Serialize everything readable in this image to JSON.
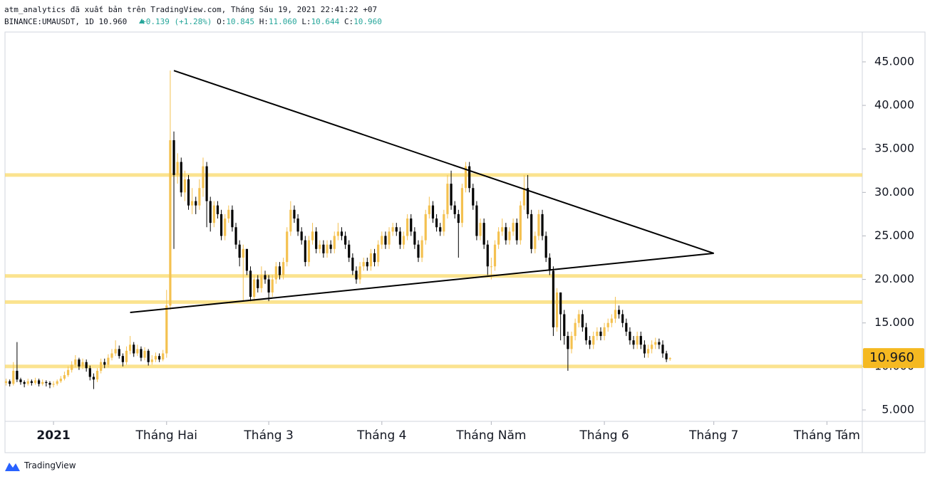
{
  "header": {
    "publisher": "atm_analytics đã xuất bản trên TradingView.com, Tháng Sáu 19, 2021 22:41:22 +07",
    "symbol": "BINANCE:UMAUSDT, 1D",
    "last": "10.960",
    "change": "+0.139 (+1.28%)",
    "ohlc": [
      {
        "key": "O:",
        "value": "10.845"
      },
      {
        "key": "H:",
        "value": "11.060"
      },
      {
        "key": "L:",
        "value": "10.644"
      },
      {
        "key": "C:",
        "value": "10.960"
      }
    ]
  },
  "footer": {
    "brand": "TradingView"
  },
  "chart_data": {
    "type": "candlestick",
    "up_color": "#f4c150",
    "down_color": "#000000",
    "band_color": "#f9d969",
    "line_color": "#000000",
    "price_box_color": "#f5b921",
    "x": [
      -13,
      -12,
      -11,
      -10,
      -9,
      -8,
      -7,
      -6,
      -5,
      -4,
      -3,
      -2,
      -1,
      0,
      1,
      2,
      3,
      4,
      5,
      6,
      7,
      8,
      9,
      10,
      11,
      12,
      13,
      14,
      15,
      16,
      17,
      18,
      19,
      20,
      21,
      22,
      23,
      24,
      25,
      26,
      27,
      28,
      29,
      30,
      31,
      32,
      33,
      34,
      35,
      36,
      37,
      38,
      39,
      40,
      41,
      42,
      43,
      44,
      45,
      46,
      47,
      48,
      49,
      50,
      51,
      52,
      53,
      54,
      55,
      56,
      57,
      58,
      59,
      60,
      61,
      62,
      63,
      64,
      65,
      66,
      67,
      68,
      69,
      70,
      71,
      72,
      73,
      74,
      75,
      76,
      77,
      78,
      79,
      80,
      81,
      82,
      83,
      84,
      85,
      86,
      87,
      88,
      89,
      90,
      91,
      92,
      93,
      94,
      95,
      96,
      97,
      98,
      99,
      100,
      101,
      102,
      103,
      104,
      105,
      106,
      107,
      108,
      109,
      110,
      111,
      112,
      113,
      114,
      115,
      116,
      117,
      118,
      119,
      120,
      121,
      122,
      123,
      124,
      125,
      126,
      127,
      128,
      129,
      130,
      131,
      132,
      133,
      134,
      135,
      136,
      137,
      138,
      139,
      140,
      141,
      142,
      143,
      144,
      145,
      146,
      147,
      148,
      149,
      150,
      151,
      152,
      153,
      154,
      155,
      156,
      157,
      158,
      159,
      160,
      161,
      162,
      163,
      164,
      165,
      166,
      167,
      168,
      169
    ],
    "open": [
      8.1,
      8.3,
      8.0,
      9.5,
      8.5,
      8.2,
      8.0,
      8.3,
      8.1,
      8.4,
      8.0,
      8.2,
      8.1,
      7.9,
      8.0,
      8.3,
      8.6,
      9.0,
      9.6,
      10.2,
      10.8,
      10.0,
      10.5,
      9.8,
      8.8,
      8.5,
      9.5,
      10.5,
      10.2,
      11.0,
      11.5,
      12.0,
      11.2,
      10.5,
      11.8,
      12.5,
      11.5,
      12.0,
      11.0,
      11.8,
      10.5,
      10.8,
      11.2,
      10.8,
      11.5,
      17.0,
      36.0,
      32.0,
      33.5,
      30.0,
      31.5,
      28.5,
      29.0,
      28.5,
      30.5,
      33.0,
      29.0,
      26.5,
      28.5,
      27.5,
      25.0,
      27.0,
      28.0,
      26.0,
      24.0,
      22.5,
      23.5,
      21.0,
      18.0,
      20.0,
      19.0,
      20.5,
      20.0,
      18.5,
      20.0,
      21.5,
      20.5,
      22.0,
      25.5,
      28.0,
      27.0,
      25.5,
      24.5,
      22.0,
      24.5,
      25.5,
      23.5,
      24.0,
      23.0,
      24.0,
      23.5,
      25.0,
      25.5,
      25.0,
      24.0,
      22.5,
      21.0,
      20.0,
      21.5,
      22.0,
      21.5,
      23.0,
      22.0,
      24.0,
      25.0,
      24.0,
      25.5,
      26.0,
      25.5,
      24.0,
      25.0,
      27.0,
      25.5,
      24.0,
      22.5,
      24.5,
      27.5,
      28.5,
      27.0,
      26.0,
      25.5,
      27.5,
      31.0,
      28.5,
      27.5,
      26.5,
      30.5,
      33.0,
      30.5,
      28.5,
      25.0,
      26.5,
      24.0,
      21.5,
      21.5,
      24.0,
      25.5,
      26.0,
      24.5,
      25.5,
      26.5,
      24.5,
      28.5,
      30.5,
      27.5,
      23.5,
      25.0,
      27.5,
      25.0,
      22.5,
      21.0,
      14.5,
      18.5,
      16.0,
      13.5,
      12.0,
      13.5,
      15.0,
      16.0,
      14.5,
      13.0,
      12.5,
      13.5,
      14.0,
      13.5,
      14.5,
      15.0,
      15.5,
      16.5,
      16.0,
      15.0,
      14.0,
      13.0,
      12.5,
      13.5,
      12.5,
      11.5,
      12.0,
      12.5,
      12.8,
      12.5,
      11.5,
      10.845
    ],
    "high": [
      8.6,
      8.5,
      10.5,
      12.8,
      8.7,
      8.4,
      8.6,
      8.5,
      8.7,
      8.6,
      8.5,
      8.4,
      8.3,
      8.3,
      8.5,
      8.9,
      9.4,
      10.0,
      10.6,
      11.3,
      11.0,
      10.9,
      10.8,
      10.1,
      9.2,
      9.8,
      10.9,
      10.9,
      11.4,
      12.0,
      13.0,
      12.4,
      11.5,
      12.3,
      13.5,
      12.8,
      12.5,
      12.3,
      12.2,
      12.0,
      11.3,
      11.6,
      11.5,
      11.9,
      18.8,
      44.0,
      37.0,
      34.5,
      34.0,
      32.5,
      32.0,
      30.5,
      29.5,
      31.5,
      34.0,
      33.5,
      29.5,
      29.0,
      29.0,
      28.0,
      27.5,
      28.5,
      28.5,
      26.5,
      24.5,
      24.0,
      23.5,
      21.5,
      20.5,
      20.5,
      21.5,
      21.0,
      20.5,
      20.5,
      22.0,
      22.0,
      22.5,
      26.0,
      29.0,
      28.5,
      27.5,
      26.0,
      25.0,
      25.0,
      26.5,
      26.0,
      24.5,
      24.5,
      24.5,
      24.5,
      25.5,
      26.5,
      26.0,
      25.5,
      24.5,
      23.0,
      21.5,
      22.0,
      22.5,
      22.5,
      23.5,
      23.5,
      24.5,
      25.5,
      25.5,
      26.0,
      26.5,
      26.5,
      26.0,
      25.5,
      27.5,
      27.5,
      26.0,
      24.5,
      25.0,
      28.0,
      29.5,
      29.0,
      27.5,
      26.5,
      28.0,
      32.0,
      32.5,
      29.0,
      28.0,
      31.0,
      33.5,
      33.5,
      31.0,
      29.0,
      27.0,
      27.0,
      24.5,
      22.5,
      24.5,
      26.0,
      27.0,
      26.5,
      26.0,
      27.0,
      27.0,
      29.0,
      32.0,
      32.0,
      28.0,
      25.5,
      28.0,
      28.0,
      25.5,
      23.0,
      21.5,
      19.0,
      18.5,
      16.5,
      14.0,
      14.0,
      15.5,
      16.5,
      16.5,
      15.0,
      13.5,
      14.0,
      14.5,
      14.5,
      15.0,
      15.5,
      16.0,
      18.0,
      17.0,
      16.5,
      15.5,
      14.5,
      13.5,
      14.0,
      14.0,
      13.0,
      12.5,
      13.0,
      13.3,
      13.2,
      13.0,
      11.8,
      11.06
    ],
    "low": [
      7.8,
      7.7,
      7.8,
      8.2,
      7.9,
      7.6,
      7.8,
      7.8,
      7.9,
      7.7,
      7.8,
      7.7,
      7.5,
      7.6,
      7.8,
      8.1,
      8.4,
      8.8,
      9.3,
      9.9,
      9.6,
      9.7,
      9.4,
      8.4,
      7.4,
      8.2,
      9.2,
      9.8,
      9.9,
      10.7,
      11.2,
      10.9,
      10.0,
      10.2,
      11.4,
      11.1,
      11.2,
      10.6,
      10.7,
      10.1,
      10.2,
      10.5,
      10.5,
      10.6,
      11.0,
      16.5,
      23.5,
      31.0,
      29.5,
      29.0,
      28.0,
      27.5,
      27.5,
      28.0,
      29.5,
      26.0,
      25.5,
      26.0,
      27.0,
      24.5,
      24.5,
      26.5,
      25.5,
      23.5,
      21.5,
      17.5,
      20.5,
      17.5,
      17.5,
      18.5,
      18.5,
      19.5,
      17.5,
      18.0,
      19.5,
      20.0,
      20.0,
      21.5,
      25.0,
      26.5,
      25.0,
      24.0,
      21.5,
      21.5,
      24.0,
      23.0,
      23.0,
      22.5,
      22.5,
      23.0,
      23.0,
      24.5,
      24.5,
      23.5,
      22.0,
      20.5,
      19.5,
      19.5,
      21.0,
      21.0,
      21.0,
      21.5,
      21.5,
      23.5,
      23.5,
      23.5,
      25.0,
      25.0,
      23.5,
      23.5,
      24.5,
      25.0,
      23.5,
      22.0,
      22.0,
      24.0,
      27.0,
      26.5,
      25.5,
      25.0,
      25.0,
      27.0,
      28.0,
      27.0,
      22.5,
      26.0,
      30.0,
      30.0,
      28.0,
      24.5,
      24.5,
      23.5,
      20.5,
      20.0,
      21.0,
      23.5,
      25.0,
      24.0,
      24.0,
      25.0,
      24.0,
      24.0,
      28.0,
      27.0,
      23.0,
      23.0,
      24.5,
      24.5,
      22.0,
      20.5,
      13.5,
      14.0,
      13.0,
      12.5,
      9.5,
      11.5,
      13.0,
      14.5,
      14.0,
      12.5,
      12.0,
      12.0,
      13.0,
      13.0,
      13.0,
      14.0,
      14.5,
      15.0,
      15.5,
      14.5,
      13.5,
      12.5,
      12.0,
      12.0,
      12.0,
      11.0,
      11.0,
      11.5,
      12.0,
      12.0,
      11.0,
      10.5,
      10.644
    ],
    "close": [
      8.3,
      8.0,
      9.5,
      8.5,
      8.2,
      8.0,
      8.3,
      8.1,
      8.4,
      8.0,
      8.2,
      8.1,
      7.9,
      8.0,
      8.3,
      8.6,
      9.0,
      9.6,
      10.2,
      10.8,
      10.0,
      10.5,
      9.8,
      8.8,
      8.5,
      9.5,
      10.5,
      10.2,
      11.0,
      11.5,
      12.0,
      11.2,
      10.5,
      11.8,
      12.5,
      11.5,
      12.0,
      11.0,
      11.8,
      10.5,
      10.8,
      11.2,
      10.8,
      11.5,
      17.0,
      36.0,
      32.0,
      33.5,
      30.0,
      31.5,
      28.5,
      29.0,
      28.5,
      30.5,
      33.0,
      29.0,
      26.5,
      28.5,
      27.5,
      25.0,
      27.0,
      28.0,
      26.0,
      24.0,
      22.5,
      23.5,
      21.0,
      18.0,
      20.0,
      19.0,
      20.5,
      20.0,
      18.5,
      20.0,
      21.5,
      20.5,
      22.0,
      25.5,
      28.0,
      27.0,
      25.5,
      24.5,
      22.0,
      24.5,
      25.5,
      23.5,
      24.0,
      23.0,
      24.0,
      23.5,
      25.0,
      25.5,
      25.0,
      24.0,
      22.5,
      21.0,
      20.0,
      21.5,
      22.0,
      21.5,
      23.0,
      22.0,
      24.0,
      25.0,
      24.0,
      25.5,
      26.0,
      25.5,
      24.0,
      25.0,
      27.0,
      25.5,
      24.0,
      22.5,
      24.5,
      27.5,
      28.5,
      27.0,
      26.0,
      25.5,
      27.5,
      31.0,
      28.5,
      27.5,
      26.5,
      30.5,
      33.0,
      30.5,
      28.5,
      25.0,
      26.5,
      24.0,
      21.5,
      21.5,
      24.0,
      25.5,
      26.0,
      24.5,
      25.5,
      26.5,
      24.5,
      28.5,
      30.5,
      27.5,
      23.5,
      25.0,
      27.5,
      25.0,
      22.5,
      21.0,
      14.5,
      18.5,
      16.0,
      13.5,
      12.0,
      13.5,
      15.0,
      16.0,
      14.5,
      13.0,
      12.5,
      13.5,
      14.0,
      13.5,
      14.5,
      15.0,
      15.5,
      16.5,
      16.0,
      15.0,
      14.0,
      13.0,
      12.5,
      13.5,
      12.5,
      11.5,
      12.0,
      12.5,
      12.8,
      12.5,
      11.5,
      10.821,
      10.96
    ],
    "bands": [
      32,
      20.4,
      17.4,
      10
    ],
    "trendlines": [
      {
        "x": [
          33,
          181
        ],
        "y": [
          44,
          23
        ]
      },
      {
        "x": [
          21,
          181
        ],
        "y": [
          16.2,
          23
        ]
      }
    ],
    "last_price": {
      "value": 10.96,
      "label": "10.960"
    },
    "xlim": [
      -13.3,
      221.7
    ],
    "ylim": [
      3.69,
      48.43
    ],
    "xticks": [
      {
        "value": 0,
        "label": "2021"
      },
      {
        "value": 31,
        "label": "Tháng Hai"
      },
      {
        "value": 59,
        "label": "Tháng 3"
      },
      {
        "value": 90,
        "label": "Tháng 4"
      },
      {
        "value": 120,
        "label": "Tháng Năm"
      },
      {
        "value": 151,
        "label": "Tháng 6"
      },
      {
        "value": 181,
        "label": "Tháng 7"
      },
      {
        "value": 212,
        "label": "Tháng Tám"
      }
    ],
    "yticks": [
      {
        "value": 5,
        "label": "5.000"
      },
      {
        "value": 10,
        "label": "10.000"
      },
      {
        "value": 15,
        "label": "15.000"
      },
      {
        "value": 20,
        "label": "20.000"
      },
      {
        "value": 25,
        "label": "25.000"
      },
      {
        "value": 30,
        "label": "30.000"
      },
      {
        "value": 35,
        "label": "35.000"
      },
      {
        "value": 40,
        "label": "40.000"
      },
      {
        "value": 45,
        "label": "45.000"
      }
    ]
  }
}
